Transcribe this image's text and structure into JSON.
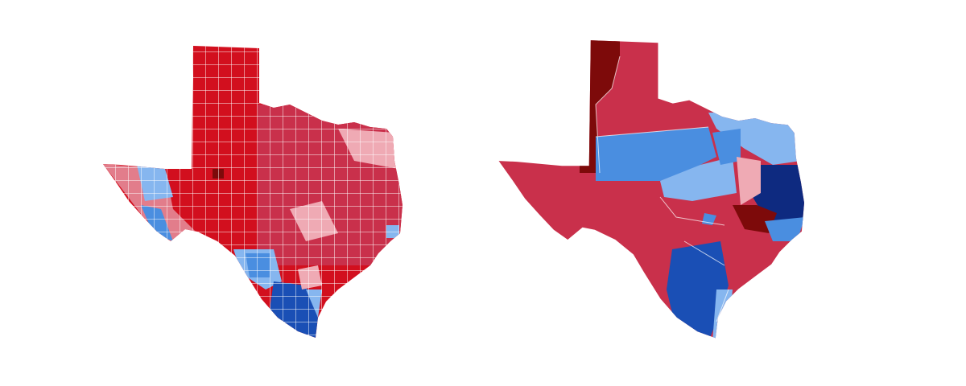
{
  "colors": {
    "dark-red": "#7d0a0a",
    "red": "#d20f1e",
    "mid-red": "#c9304b",
    "light-red": "#e27d8b",
    "pale-red": "#efaab4",
    "light-blue": "#86b6ef",
    "blue": "#4a8ee0",
    "dark-blue": "#1a4fb5",
    "navy": "#0e2a80"
  }
}
